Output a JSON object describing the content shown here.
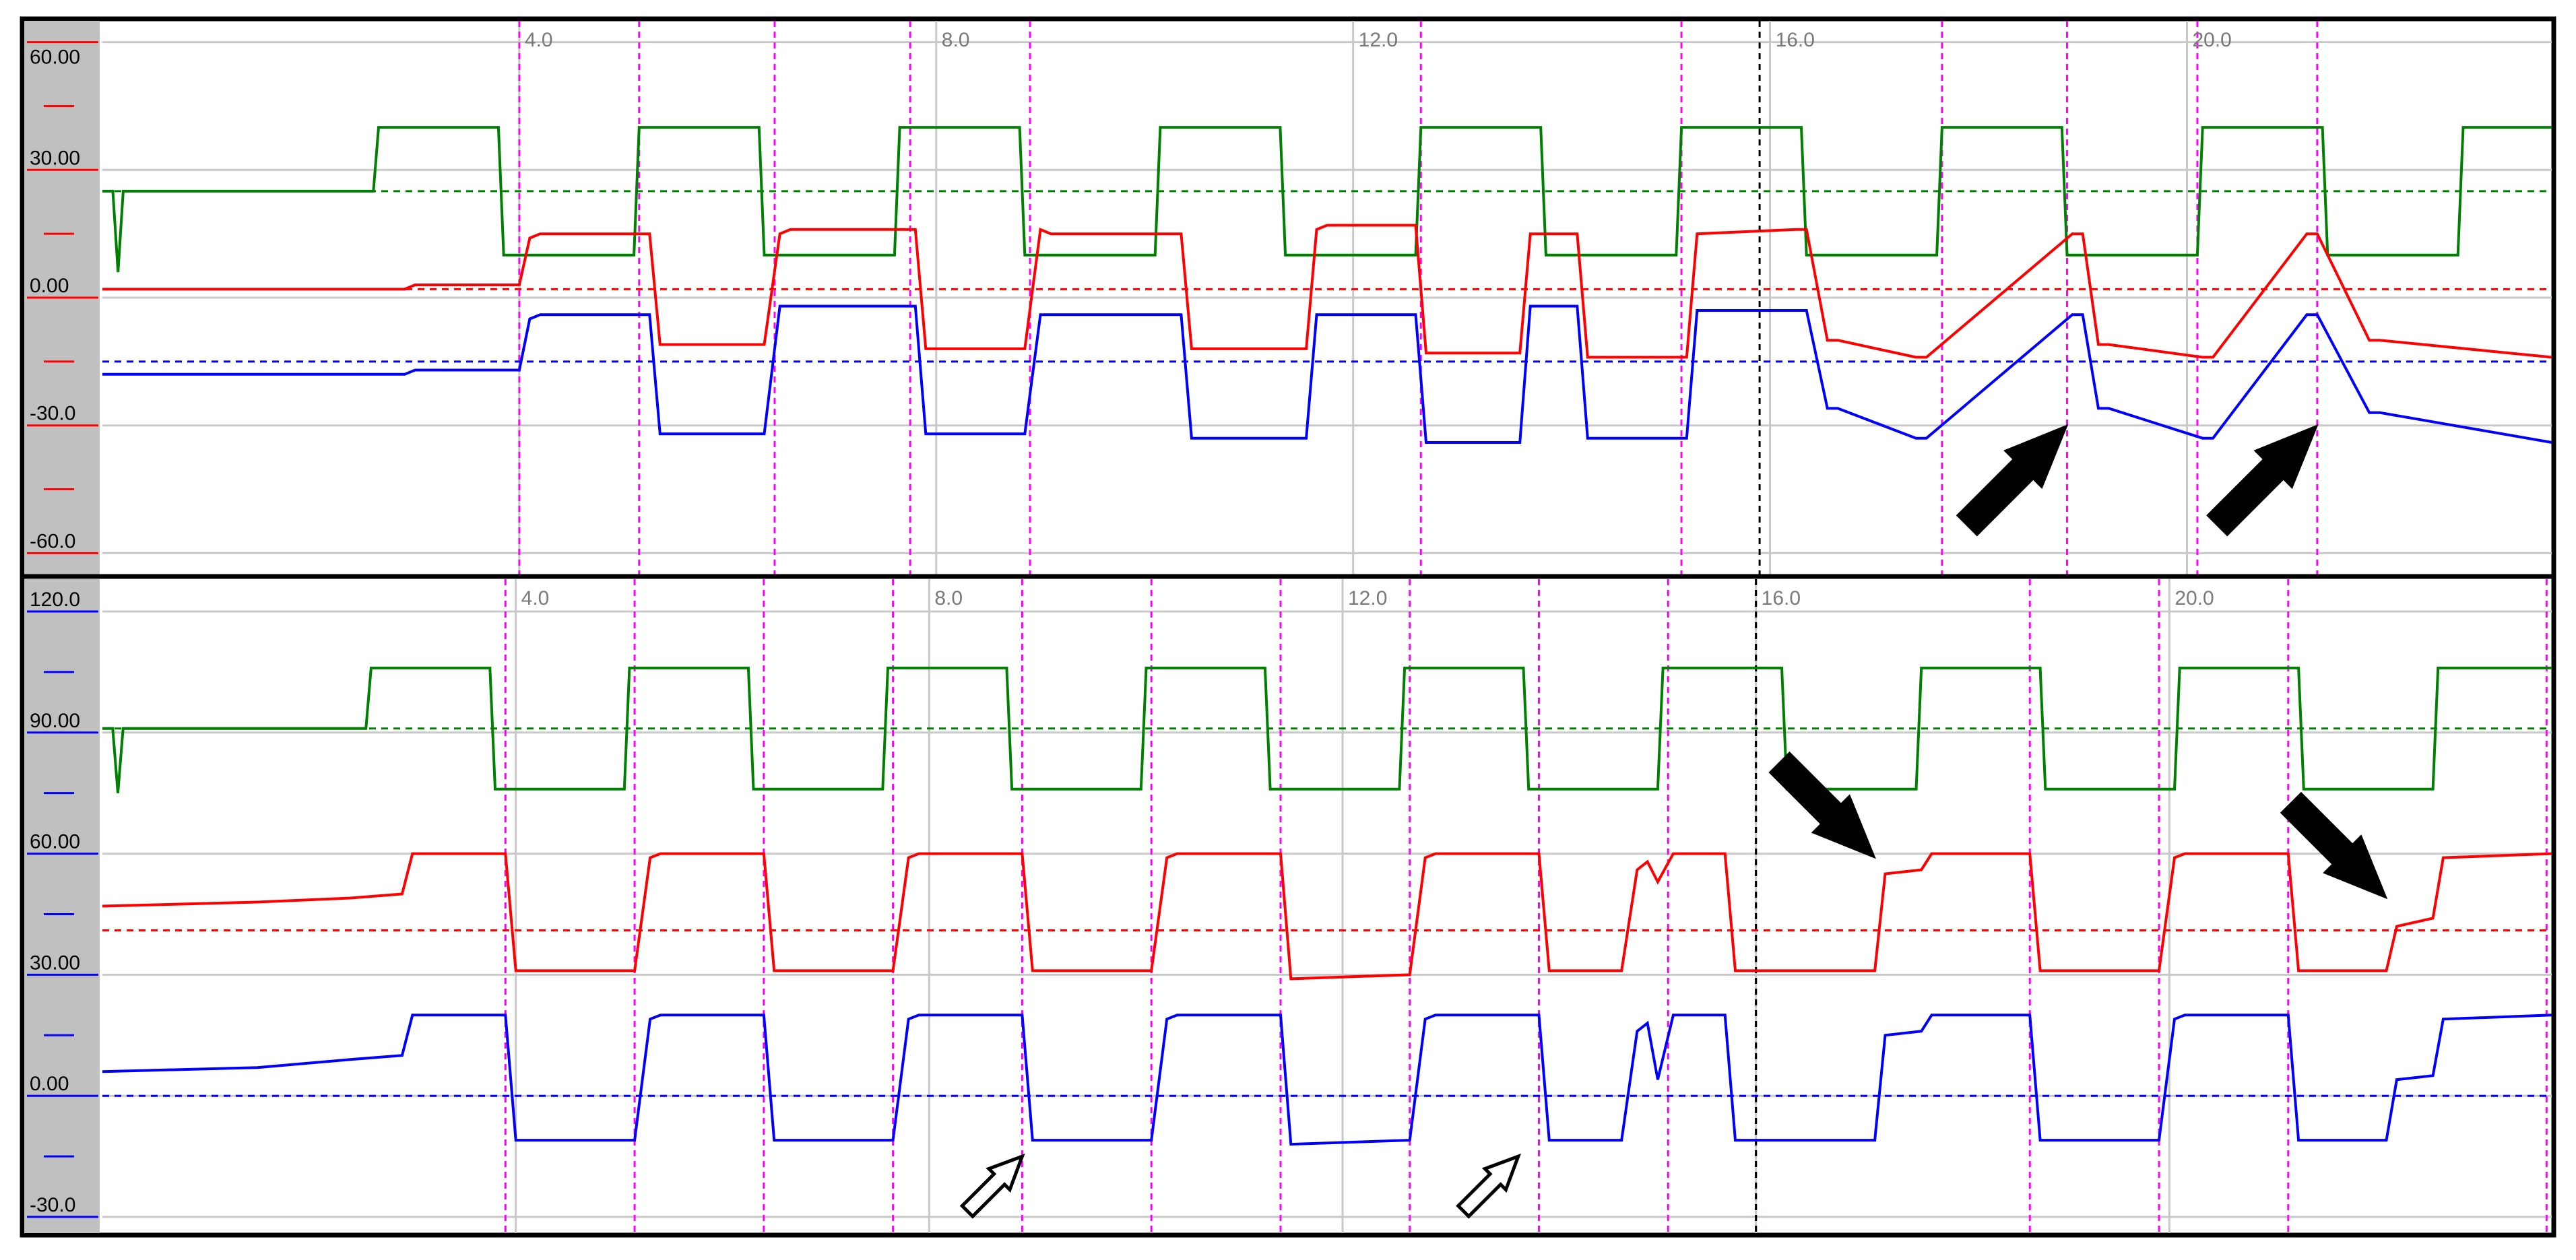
{
  "chart_data": [
    {
      "type": "line",
      "panel": "upper",
      "y_tick_labels": [
        "60.00",
        "30.00",
        "0.00",
        "-30.0",
        "-60.0"
      ],
      "x_tick_labels": [
        "4.0",
        "8.0",
        "12.0",
        "16.0",
        "20.0"
      ],
      "x_ticks": [
        4,
        8,
        12,
        16,
        20
      ],
      "xlim": [
        0,
        23.5
      ],
      "ylim": [
        -65,
        65
      ],
      "y_ticks": [
        60,
        30,
        0,
        -30,
        -60
      ],
      "grid": true,
      "colors": {
        "green": "#008000",
        "red": "#ff0000",
        "blue": "#0000ff",
        "marker": "#ff00ff",
        "cursor": "#000000",
        "gutter": "#c0c0c0",
        "grid": "#c8c8c8"
      },
      "cursor_x": 15.9,
      "marker_x": [
        4.0,
        5.15,
        6.45,
        7.75,
        8.9,
        12.65,
        15.15,
        17.65,
        18.85,
        20.1,
        21.25
      ],
      "reference_lines": [
        {
          "color": "green",
          "y": 25
        },
        {
          "color": "red",
          "y": 2
        },
        {
          "color": "blue",
          "y": -15
        }
      ],
      "series": [
        {
          "color": "green",
          "x": [
            0,
            0.1,
            0.15,
            0.2,
            2.6,
            2.65,
            3.8,
            3.85,
            5.1,
            5.15,
            6.3,
            6.35,
            7.6,
            7.65,
            8.8,
            8.85,
            10.1,
            10.15,
            11.3,
            11.35,
            12.6,
            12.65,
            13.8,
            13.85,
            15.1,
            15.15,
            16.3,
            16.35,
            17.6,
            17.65,
            18.8,
            18.85,
            20.1,
            20.15,
            21.3,
            21.35,
            22.6,
            22.65,
            23.5
          ],
          "y": [
            25,
            25,
            6,
            25,
            25,
            40,
            40,
            10,
            10,
            40,
            40,
            10,
            10,
            40,
            40,
            10,
            10,
            40,
            40,
            10,
            10,
            40,
            40,
            10,
            10,
            40,
            40,
            10,
            10,
            40,
            40,
            10,
            10,
            40,
            40,
            10,
            10,
            40,
            40
          ]
        },
        {
          "color": "red",
          "x": [
            0,
            2.9,
            3.0,
            4.0,
            4.1,
            4.2,
            5.25,
            5.35,
            6.35,
            6.5,
            6.6,
            7.8,
            7.9,
            8.85,
            9.0,
            9.1,
            10.35,
            10.45,
            11.55,
            11.65,
            11.75,
            12.6,
            12.7,
            13.6,
            13.7,
            14.15,
            14.25,
            15.2,
            15.3,
            16.25,
            16.35,
            16.55,
            16.65,
            17.4,
            17.5,
            18.9,
            19.0,
            19.15,
            19.25,
            20.15,
            20.25,
            21.15,
            21.25,
            21.75,
            21.85,
            23.5
          ],
          "y": [
            2,
            2,
            3,
            3,
            14,
            15,
            15,
            -11,
            -11,
            15,
            16,
            16,
            -12,
            -12,
            16,
            15,
            15,
            -12,
            -12,
            16,
            17,
            17,
            -13,
            -13,
            15,
            15,
            -14,
            -14,
            15,
            16,
            16,
            -10,
            -10,
            -14,
            -14,
            15,
            15,
            -11,
            -11,
            -14,
            -14,
            15,
            15,
            -10,
            -10,
            -14
          ]
        },
        {
          "color": "blue",
          "x": [
            0,
            2.9,
            3.0,
            4.0,
            4.1,
            4.2,
            5.25,
            5.35,
            6.35,
            6.5,
            6.6,
            7.8,
            7.9,
            8.85,
            9.0,
            9.1,
            10.35,
            10.45,
            11.55,
            11.65,
            11.75,
            12.6,
            12.7,
            13.6,
            13.7,
            14.15,
            14.25,
            15.2,
            15.3,
            16.25,
            16.35,
            16.55,
            16.65,
            17.4,
            17.5,
            18.9,
            19.0,
            19.15,
            19.25,
            20.15,
            20.25,
            21.15,
            21.25,
            21.75,
            21.85,
            23.5
          ],
          "y": [
            -18,
            -18,
            -17,
            -17,
            -5,
            -4,
            -4,
            -32,
            -32,
            -2,
            -2,
            -2,
            -32,
            -32,
            -4,
            -4,
            -4,
            -33,
            -33,
            -4,
            -4,
            -4,
            -34,
            -34,
            -2,
            -2,
            -33,
            -33,
            -3,
            -3,
            -3,
            -26,
            -26,
            -33,
            -33,
            -4,
            -4,
            -26,
            -26,
            -33,
            -33,
            -4,
            -4,
            -27,
            -27,
            -34
          ]
        }
      ],
      "annotations": [
        {
          "type": "solid-arrow",
          "x": 18.85,
          "y": -30
        },
        {
          "type": "solid-arrow",
          "x": 21.25,
          "y": -30
        }
      ]
    },
    {
      "type": "line",
      "panel": "lower",
      "y_tick_labels": [
        "120.0",
        "90.00",
        "60.00",
        "30.00",
        "0.00",
        "-30.0"
      ],
      "x_tick_labels": [
        "4.0",
        "8.0",
        "12.0",
        "16.0",
        "20.0"
      ],
      "x_ticks": [
        4,
        8,
        12,
        16,
        20
      ],
      "xlim": [
        0,
        23.7
      ],
      "ylim": [
        -34,
        128
      ],
      "y_ticks": [
        120,
        90,
        60,
        30,
        0,
        -30
      ],
      "grid": true,
      "cursor_x": 16.0,
      "marker_x": [
        3.9,
        5.15,
        6.4,
        7.65,
        8.9,
        10.15,
        11.4,
        12.65,
        13.9,
        15.15,
        16.0,
        18.65,
        19.9,
        21.15,
        23.65
      ],
      "reference_lines": [
        {
          "color": "green",
          "y": 91
        },
        {
          "color": "red",
          "y": 41
        },
        {
          "color": "blue",
          "y": 0
        }
      ],
      "series": [
        {
          "color": "green",
          "x": [
            0,
            0.1,
            0.15,
            0.2,
            2.55,
            2.6,
            3.75,
            3.8,
            5.05,
            5.1,
            6.25,
            6.3,
            7.55,
            7.6,
            8.75,
            8.8,
            10.05,
            10.1,
            11.25,
            11.3,
            12.55,
            12.6,
            13.75,
            13.8,
            15.05,
            15.1,
            16.25,
            16.3,
            17.55,
            17.6,
            18.75,
            18.8,
            20.05,
            20.1,
            21.25,
            21.3,
            22.55,
            22.6,
            23.7
          ],
          "y": [
            91,
            91,
            75,
            91,
            91,
            106,
            106,
            76,
            76,
            106,
            106,
            76,
            76,
            106,
            106,
            76,
            76,
            106,
            106,
            76,
            76,
            106,
            106,
            76,
            76,
            106,
            106,
            76,
            76,
            106,
            106,
            76,
            76,
            106,
            106,
            76,
            76,
            106,
            106
          ]
        },
        {
          "color": "red",
          "x": [
            0,
            1.5,
            2.4,
            2.9,
            3.0,
            3.9,
            4.0,
            5.15,
            5.3,
            5.4,
            6.4,
            6.5,
            7.65,
            7.8,
            7.9,
            8.9,
            9.0,
            10.15,
            10.3,
            10.4,
            11.4,
            11.5,
            12.65,
            12.8,
            12.9,
            13.9,
            14.0,
            14.7,
            14.85,
            14.95,
            15.05,
            15.2,
            15.7,
            15.8,
            15.9,
            16.0,
            17.15,
            17.25,
            17.6,
            17.7,
            18.65,
            18.75,
            19.9,
            20.05,
            20.15,
            21.15,
            21.25,
            22.1,
            22.2,
            22.55,
            22.65,
            23.7
          ],
          "y": [
            47,
            48,
            49,
            50,
            60,
            60,
            31,
            31,
            59,
            60,
            60,
            31,
            31,
            59,
            60,
            60,
            31,
            31,
            59,
            60,
            60,
            29,
            30,
            59,
            60,
            60,
            31,
            31,
            56,
            58,
            53,
            60,
            60,
            31,
            31,
            31,
            31,
            55,
            56,
            60,
            60,
            31,
            31,
            59,
            60,
            60,
            31,
            31,
            42,
            44,
            59,
            60
          ]
        },
        {
          "color": "blue",
          "x": [
            0,
            1.5,
            2.4,
            2.9,
            3.0,
            3.9,
            4.0,
            5.15,
            5.3,
            5.4,
            6.4,
            6.5,
            7.65,
            7.8,
            7.9,
            8.9,
            9.0,
            10.15,
            10.3,
            10.4,
            11.4,
            11.5,
            12.65,
            12.8,
            12.9,
            13.9,
            14.0,
            14.7,
            14.85,
            14.95,
            15.05,
            15.2,
            15.7,
            15.8,
            15.9,
            16.0,
            17.15,
            17.25,
            17.6,
            17.7,
            18.65,
            18.75,
            19.9,
            20.05,
            20.15,
            21.15,
            21.25,
            22.1,
            22.2,
            22.55,
            22.65,
            23.7
          ],
          "y": [
            6,
            7,
            9,
            10,
            20,
            20,
            -11,
            -11,
            19,
            20,
            20,
            -11,
            -11,
            19,
            20,
            20,
            -11,
            -11,
            19,
            20,
            20,
            -12,
            -11,
            19,
            20,
            20,
            -11,
            -11,
            16,
            18,
            4,
            20,
            20,
            -11,
            -11,
            -11,
            -11,
            15,
            16,
            20,
            20,
            -11,
            -11,
            19,
            20,
            20,
            -11,
            -11,
            4,
            5,
            19,
            20
          ]
        }
      ],
      "annotations": [
        {
          "type": "solid-arrow",
          "x": 17.15,
          "y": 59
        },
        {
          "type": "solid-arrow",
          "x": 22.1,
          "y": 49
        },
        {
          "type": "outline-arrow",
          "x": 8.9,
          "y": -15
        },
        {
          "type": "outline-arrow",
          "x": 13.7,
          "y": -15
        }
      ]
    }
  ]
}
